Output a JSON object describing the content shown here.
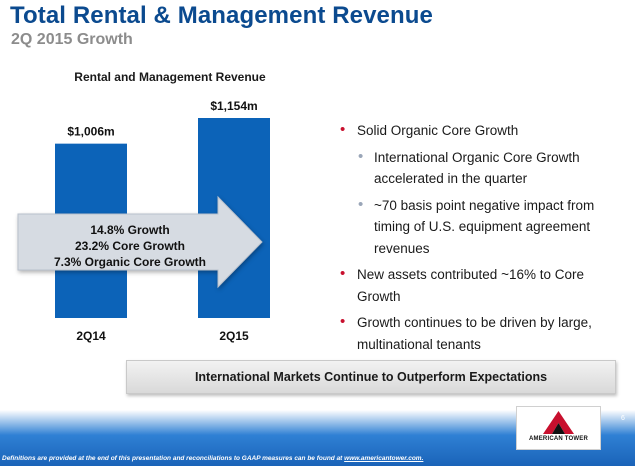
{
  "header": {
    "title": "Total Rental & Management Revenue",
    "subtitle": "2Q 2015 Growth"
  },
  "chart_data": {
    "type": "bar",
    "title": "Rental and Management Revenue",
    "categories": [
      "2Q14",
      "2Q15"
    ],
    "values": [
      1006,
      1154
    ],
    "value_labels": [
      "$1,006m",
      "$1,154m"
    ],
    "unit": "$m",
    "bar_color": "#0c63b8",
    "grid": false
  },
  "growth_arrow": {
    "lines": [
      "14.8% Growth",
      "23.2% Core Growth",
      "7.3% Organic Core Growth"
    ]
  },
  "bullets": [
    {
      "level": 1,
      "text": "Solid Organic Core Growth"
    },
    {
      "level": 2,
      "text": "International Organic Core Growth accelerated in the quarter"
    },
    {
      "level": 2,
      "text": "~70 basis point negative impact from timing of U.S. equipment agreement revenues"
    },
    {
      "level": 1,
      "text": "New assets contributed ~16% to Core Growth"
    },
    {
      "level": 1,
      "text": "Growth continues to be driven by large, multinational tenants"
    }
  ],
  "banner": {
    "text": "International Markets Continue to Outperform Expectations"
  },
  "footer": {
    "footnote_prefix": "Definitions are provided at the end of this presentation and reconciliations to GAAP measures can be found at ",
    "footnote_link": "www.americantower.com.",
    "page_number": "6",
    "logo_text": "AMERICAN TOWER",
    "logo_color": "#c8102e"
  },
  "colors": {
    "title": "#0b4a8f",
    "subtitle": "#8c8c8c",
    "bullet_primary": "#c8102e",
    "bullet_secondary": "#9aa6b8"
  }
}
